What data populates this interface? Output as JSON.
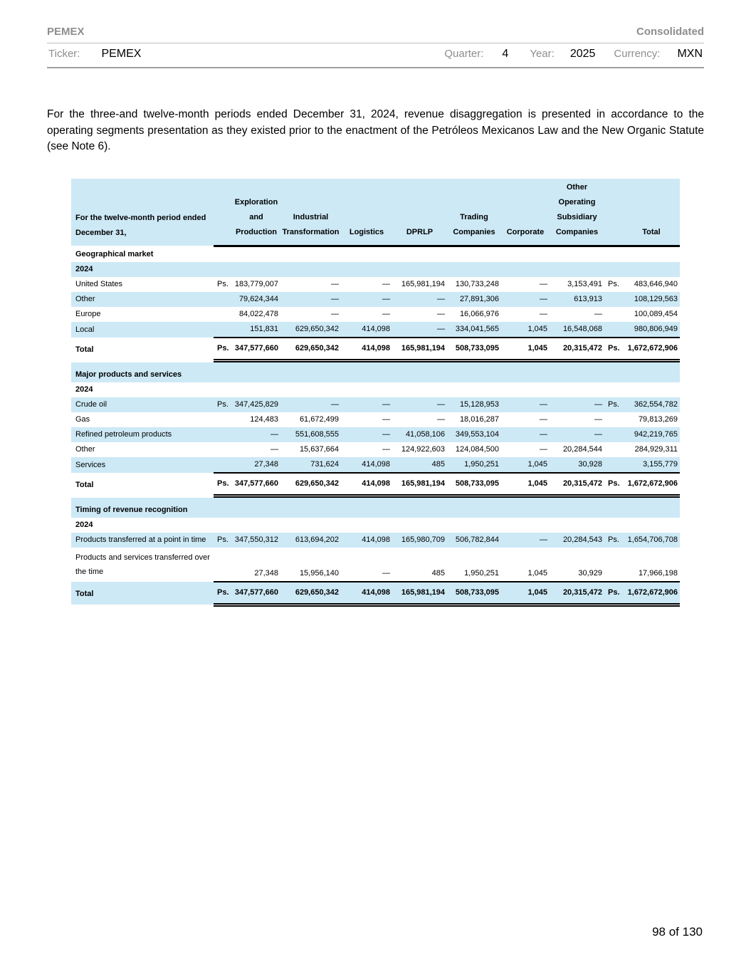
{
  "header": {
    "company": "PEMEX",
    "report_type": "Consolidated",
    "ticker_label": "Ticker:",
    "ticker_value": "PEMEX",
    "quarter_label": "Quarter:",
    "quarter_value": "4",
    "year_label": "Year:",
    "year_value": "2025",
    "currency_label": "Currency:",
    "currency_value": "MXN"
  },
  "intro_paragraph": "For the three-and twelve-month periods ended December 31, 2024, revenue disaggregation is presented in accordance to the operating segments presentation as they existed prior to the enactment of the Petróleos Mexicanos Law and the New Organic Statute (see Note 6).",
  "colors": {
    "band_blue": "#cde9f6",
    "muted_gray": "#8e8e8e"
  },
  "table": {
    "row_header_lines": [
      "For the twelve-month period ended",
      "December 31,"
    ],
    "columns": [
      {
        "id": "exploration_and_production",
        "lines": [
          "Exploration",
          "and",
          "Production"
        ]
      },
      {
        "id": "industrial_transformation",
        "lines": [
          "Industrial",
          "Transformation"
        ]
      },
      {
        "id": "logistics",
        "lines": [
          "Logistics"
        ]
      },
      {
        "id": "dprlp",
        "lines": [
          "DPRLP"
        ]
      },
      {
        "id": "trading_companies",
        "lines": [
          "Trading",
          "Companies"
        ]
      },
      {
        "id": "corporate",
        "lines": [
          "Corporate"
        ]
      },
      {
        "id": "other_operating_subsidiary_companies",
        "lines": [
          "Other",
          "Operating",
          "Subsidiary",
          "Companies"
        ]
      },
      {
        "id": "total",
        "lines": [
          "Total"
        ]
      }
    ],
    "sections": [
      {
        "title": "Geographical market",
        "year": "2024",
        "rows": [
          {
            "label": "United States",
            "ps1": "Ps.",
            "values": [
              "183,779,007",
              "—",
              "—",
              "165,981,194",
              "130,733,248",
              "—",
              "3,153,491"
            ],
            "ps2": "Ps.",
            "total": "483,646,940"
          },
          {
            "label": "Other",
            "ps1": "",
            "values": [
              "79,624,344",
              "—",
              "—",
              "—",
              "27,891,306",
              "—",
              "613,913"
            ],
            "ps2": "",
            "total": "108,129,563"
          },
          {
            "label": "Europe",
            "ps1": "",
            "values": [
              "84,022,478",
              "—",
              "—",
              "—",
              "16,066,976",
              "—",
              "—"
            ],
            "ps2": "",
            "total": "100,089,454"
          },
          {
            "label": "Local",
            "ps1": "",
            "values": [
              "151,831",
              "629,650,342",
              "414,098",
              "—",
              "334,041,565",
              "1,045",
              "16,548,068"
            ],
            "ps2": "",
            "total": "980,806,949"
          }
        ],
        "total_row": {
          "label": "Total",
          "ps1": "Ps.",
          "values": [
            "347,577,660",
            "629,650,342",
            "414,098",
            "165,981,194",
            "508,733,095",
            "1,045",
            "20,315,472"
          ],
          "ps2": "Ps.",
          "total": "1,672,672,906"
        }
      },
      {
        "title": "Major products and services",
        "year": "2024",
        "rows": [
          {
            "label": "Crude oil",
            "ps1": "Ps.",
            "values": [
              "347,425,829",
              "—",
              "—",
              "—",
              "15,128,953",
              "—",
              "—"
            ],
            "ps2": "Ps.",
            "total": "362,554,782"
          },
          {
            "label": "Gas",
            "ps1": "",
            "values": [
              "124,483",
              "61,672,499",
              "—",
              "—",
              "18,016,287",
              "—",
              "—"
            ],
            "ps2": "",
            "total": "79,813,269"
          },
          {
            "label": "Refined petroleum products",
            "ps1": "",
            "values": [
              "—",
              "551,608,555",
              "—",
              "41,058,106",
              "349,553,104",
              "—",
              "—"
            ],
            "ps2": "",
            "total": "942,219,765"
          },
          {
            "label": "Other",
            "ps1": "",
            "values": [
              "—",
              "15,637,664",
              "—",
              "124,922,603",
              "124,084,500",
              "—",
              "20,284,544"
            ],
            "ps2": "",
            "total": "284,929,311"
          },
          {
            "label": "Services",
            "ps1": "",
            "values": [
              "27,348",
              "731,624",
              "414,098",
              "485",
              "1,950,251",
              "1,045",
              "30,928"
            ],
            "ps2": "",
            "total": "3,155,779"
          }
        ],
        "total_row": {
          "label": "Total",
          "ps1": "Ps.",
          "values": [
            "347,577,660",
            "629,650,342",
            "414,098",
            "165,981,194",
            "508,733,095",
            "1,045",
            "20,315,472"
          ],
          "ps2": "Ps.",
          "total": "1,672,672,906"
        }
      },
      {
        "title": "Timing of revenue recognition",
        "year": "2024",
        "rows": [
          {
            "label": "Products transferred at a point in time",
            "ps1": "Ps.",
            "values": [
              "347,550,312",
              "613,694,202",
              "414,098",
              "165,980,709",
              "506,782,844",
              "—",
              "20,284,543"
            ],
            "ps2": "Ps.",
            "total": "1,654,706,708"
          },
          {
            "label_lines": [
              "Products and services transferred over",
              "the time"
            ],
            "ps1": "",
            "values": [
              "27,348",
              "15,956,140",
              "—",
              "485",
              "1,950,251",
              "1,045",
              "30,929"
            ],
            "ps2": "",
            "total": "17,966,198"
          }
        ],
        "total_row": {
          "label": "Total",
          "ps1": "Ps.",
          "values": [
            "347,577,660",
            "629,650,342",
            "414,098",
            "165,981,194",
            "508,733,095",
            "1,045",
            "20,315,472"
          ],
          "ps2": "Ps.",
          "total": "1,672,672,906"
        }
      }
    ]
  },
  "footer": {
    "page_indicator": "98 of 130"
  }
}
